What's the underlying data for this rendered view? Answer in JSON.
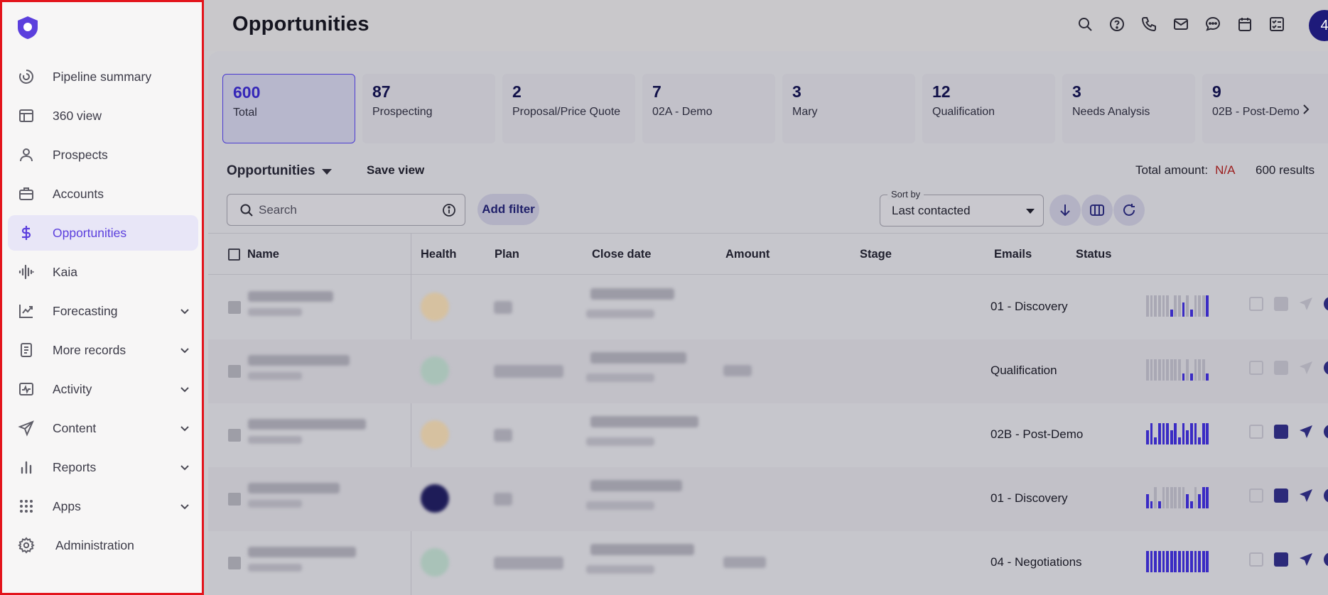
{
  "sidebar": {
    "items": [
      {
        "label": "Pipeline summary",
        "icon": "pipeline-summary-icon",
        "active": false,
        "chevron": false
      },
      {
        "label": "360 view",
        "icon": "360-view-icon",
        "active": false,
        "chevron": false
      },
      {
        "label": "Prospects",
        "icon": "person-icon",
        "active": false,
        "chevron": false
      },
      {
        "label": "Accounts",
        "icon": "briefcase-icon",
        "active": false,
        "chevron": false
      },
      {
        "label": "Opportunities",
        "icon": "dollar-icon",
        "active": true,
        "chevron": false
      },
      {
        "label": "Kaia",
        "icon": "kaia-waveform-icon",
        "active": false,
        "chevron": false
      },
      {
        "label": "Forecasting",
        "icon": "trend-chart-icon",
        "active": false,
        "chevron": true
      },
      {
        "label": "More records",
        "icon": "document-list-icon",
        "active": false,
        "chevron": true
      },
      {
        "label": "Activity",
        "icon": "activity-icon",
        "active": false,
        "chevron": true
      },
      {
        "label": "Content",
        "icon": "send-icon",
        "active": false,
        "chevron": true
      },
      {
        "label": "Reports",
        "icon": "bar-chart-icon",
        "active": false,
        "chevron": true
      },
      {
        "label": "Apps",
        "icon": "apps-grid-icon",
        "active": false,
        "chevron": true
      },
      {
        "label": "Administration",
        "icon": "gear-icon",
        "active": false,
        "chevron": false
      }
    ]
  },
  "header": {
    "title": "Opportunities",
    "icons": [
      "search-icon",
      "help-icon",
      "phone-icon",
      "mail-icon",
      "chat-icon",
      "calendar-icon",
      "tasks-icon"
    ],
    "avatar_text": "4"
  },
  "stages": [
    {
      "count": "600",
      "label": "Total"
    },
    {
      "count": "87",
      "label": "Prospecting"
    },
    {
      "count": "2",
      "label": "Proposal/Price Quote"
    },
    {
      "count": "7",
      "label": "02A - Demo"
    },
    {
      "count": "3",
      "label": "Mary"
    },
    {
      "count": "12",
      "label": "Qualification"
    },
    {
      "count": "3",
      "label": "Needs Analysis"
    },
    {
      "count": "9",
      "label": "02B - Post-Demo"
    }
  ],
  "view": {
    "title": "Opportunities",
    "save_label": "Save view",
    "total_amount_label": "Total amount:",
    "total_amount_value": "N/A",
    "result_count": "600 results"
  },
  "toolbar": {
    "search_placeholder": "Search",
    "add_filter_label": "Add filter",
    "sort_by_label": "Sort by",
    "sort_by_value": "Last contacted"
  },
  "table": {
    "columns": [
      "Name",
      "Health",
      "Plan",
      "Close date",
      "Amount",
      "Stage",
      "Emails",
      "Status"
    ],
    "rows": [
      {
        "stage": "01 - Discovery",
        "health_color": "#d6c1a0",
        "emails": [
          0,
          0,
          0,
          0,
          0,
          0,
          1,
          0,
          0,
          2,
          0,
          1,
          0,
          0,
          0,
          3
        ],
        "status_active": false
      },
      {
        "stage": "Qualification",
        "health_color": "#a9c2b8",
        "emails": [
          0,
          0,
          0,
          0,
          0,
          0,
          0,
          0,
          0,
          1,
          0,
          1,
          0,
          0,
          0,
          1
        ],
        "status_active": false
      },
      {
        "stage": "02B - Post-Demo",
        "health_color": "#d6c1a0",
        "emails": [
          2,
          3,
          1,
          3,
          3,
          3,
          2,
          3,
          1,
          3,
          2,
          3,
          3,
          1,
          3,
          3
        ],
        "status_active": true
      },
      {
        "stage": "01 - Discovery",
        "health_color": "#1e1c58",
        "emails": [
          2,
          1,
          0,
          1,
          0,
          0,
          0,
          0,
          0,
          0,
          2,
          1,
          0,
          2,
          3,
          3
        ],
        "status_active": true
      },
      {
        "stage": "04 - Negotiations",
        "health_color": "#a9c2b8",
        "emails": [
          3,
          3,
          3,
          3,
          3,
          3,
          3,
          3,
          3,
          3,
          3,
          3,
          3,
          3,
          3,
          3
        ],
        "status_active": true
      }
    ]
  },
  "colors": {
    "accent": "#5b3fdd",
    "sidebar_border": "#e3141b",
    "email_bar": "#3a2bc4",
    "email_empty": "#a9a8b4",
    "na_text": "#9b1c1c"
  }
}
